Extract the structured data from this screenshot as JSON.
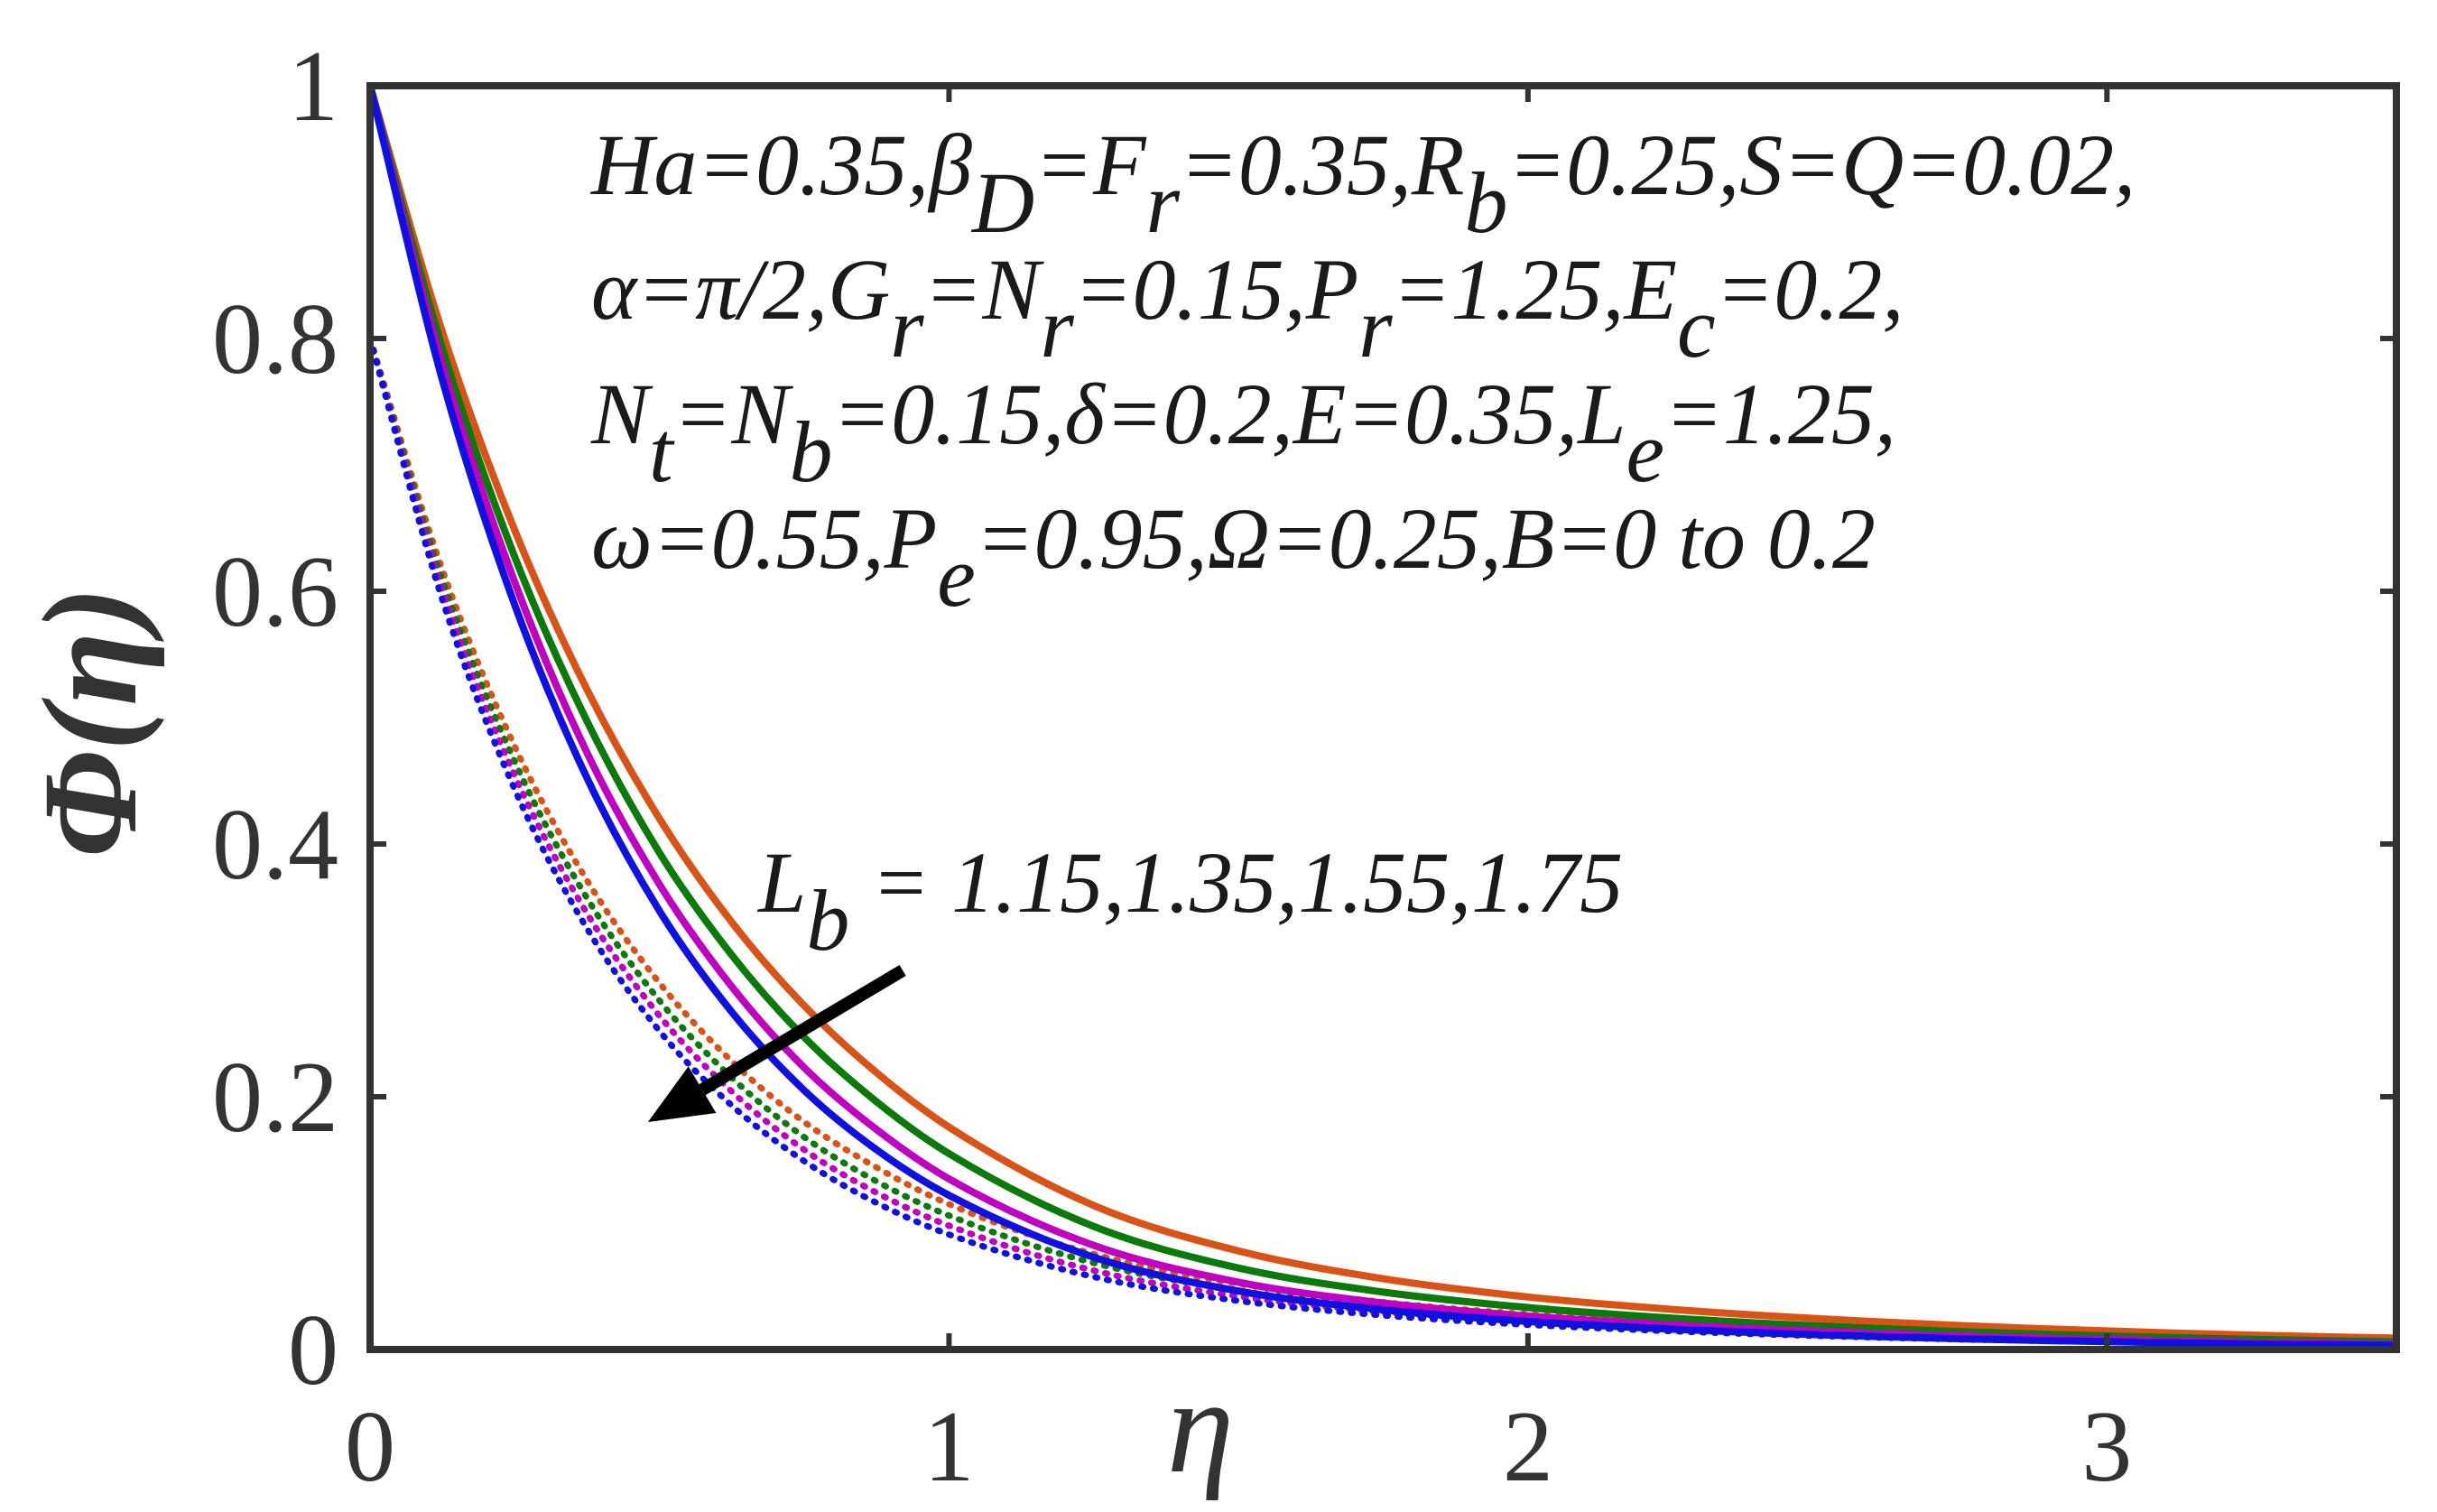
{
  "chart_data": {
    "type": "line",
    "xlabel": "η",
    "ylabel": "Φ(η)",
    "xlim": [
      0,
      3.5
    ],
    "ylim": [
      0,
      1
    ],
    "x_ticks": [
      "0",
      "1",
      "2",
      "3"
    ],
    "y_ticks": [
      "0",
      "0.2",
      "0.4",
      "0.6",
      "0.8",
      "1"
    ],
    "grid": false,
    "colors": {
      "orange": "#D95319",
      "green": "#0B7A0B",
      "magenta": "#C000C0",
      "blue": "#1010E0",
      "arrow": "#000000"
    },
    "parameters": [
      "Ha=0.35,β_D=F_r=0.35,R_b=0.25,S=Q=0.02,",
      "α=π/2,G_r=N_r=0.15,P_r=1.25,E_c=0.2,",
      "N_t=N_b=0.15,δ=0.2,E=0.35,L_e=1.25,",
      "ω=0.55,P_e=0.95,Ω=0.25,B=0 to 0.2"
    ],
    "annotation": "L_b = 1.15,1.35,1.55,1.75",
    "arrow": {
      "from": [
        0.92,
        0.3
      ],
      "to": [
        0.48,
        0.18
      ]
    },
    "x": [
      0,
      0.125,
      0.25,
      0.375,
      0.5,
      0.625,
      0.75,
      0.875,
      1.0,
      1.25,
      1.5,
      1.75,
      2.0,
      2.25,
      2.5,
      2.75,
      3.0,
      3.25,
      3.5
    ],
    "series": [
      {
        "color": "orange",
        "style": "solid",
        "values": [
          1.0,
          0.805,
          0.648,
          0.522,
          0.42,
          0.338,
          0.272,
          0.219,
          0.176,
          0.114,
          0.078,
          0.056,
          0.0416,
          0.0317,
          0.0244,
          0.0189,
          0.0147,
          0.0114,
          0.009
        ]
      },
      {
        "color": "green",
        "style": "solid",
        "values": [
          1.0,
          0.792,
          0.627,
          0.497,
          0.393,
          0.312,
          0.247,
          0.196,
          0.155,
          0.0974,
          0.0645,
          0.0454,
          0.0332,
          0.0248,
          0.0187,
          0.0141,
          0.0107,
          0.0081,
          0.0061
        ]
      },
      {
        "color": "magenta",
        "style": "solid",
        "values": [
          1.0,
          0.779,
          0.607,
          0.472,
          0.368,
          0.287,
          0.223,
          0.174,
          0.135,
          0.0824,
          0.0533,
          0.0368,
          0.0265,
          0.0195,
          0.0144,
          0.0107,
          0.0079,
          0.0058,
          0.0043
        ]
      },
      {
        "color": "blue",
        "style": "solid",
        "values": [
          1.0,
          0.767,
          0.589,
          0.452,
          0.347,
          0.267,
          0.205,
          0.158,
          0.122,
          0.073,
          0.0463,
          0.0314,
          0.0222,
          0.0161,
          0.0117,
          0.0085,
          0.0062,
          0.0045,
          0.0033
        ]
      },
      {
        "color": "orange",
        "style": "dotted",
        "values": [
          0.8,
          0.617,
          0.477,
          0.371,
          0.29,
          0.228,
          0.18,
          0.144,
          0.115,
          0.0755,
          0.052,
          0.0375,
          0.0279,
          0.0211,
          0.0161,
          0.0123,
          0.0094,
          0.0072,
          0.0055
        ]
      },
      {
        "color": "green",
        "style": "dotted",
        "values": [
          0.8,
          0.609,
          0.465,
          0.357,
          0.276,
          0.215,
          0.168,
          0.133,
          0.106,
          0.0685,
          0.0466,
          0.0333,
          0.0246,
          0.0184,
          0.0139,
          0.0105,
          0.008,
          0.006,
          0.0046
        ]
      },
      {
        "color": "magenta",
        "style": "dotted",
        "values": [
          0.8,
          0.601,
          0.454,
          0.345,
          0.264,
          0.204,
          0.158,
          0.124,
          0.098,
          0.0625,
          0.0421,
          0.0298,
          0.0218,
          0.0162,
          0.0121,
          0.0091,
          0.0068,
          0.0051,
          0.0038
        ]
      },
      {
        "color": "blue",
        "style": "dotted",
        "values": [
          0.8,
          0.593,
          0.443,
          0.333,
          0.252,
          0.193,
          0.149,
          0.116,
          0.091,
          0.0575,
          0.0385,
          0.027,
          0.0196,
          0.0145,
          0.0108,
          0.008,
          0.006,
          0.0045,
          0.0033
        ]
      }
    ]
  }
}
